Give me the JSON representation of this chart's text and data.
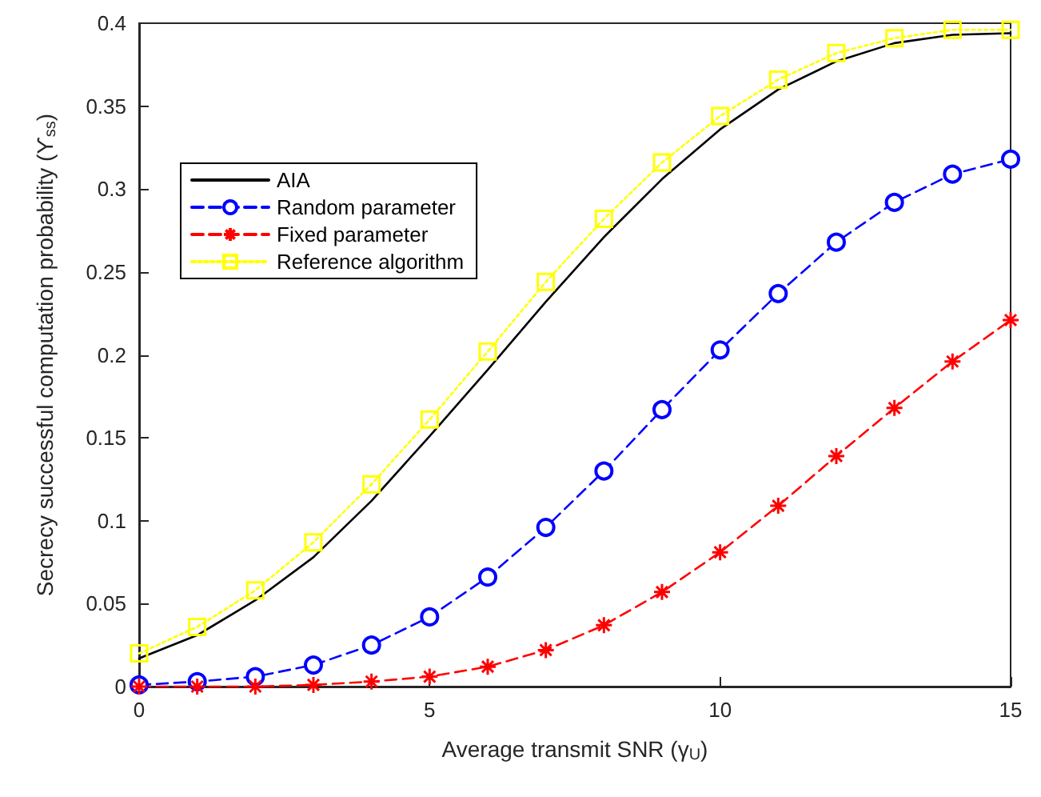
{
  "chart_data": {
    "type": "line",
    "xlabel": "Average transmit SNR (γ$_{U}$)",
    "ylabel": "Secrecy successful computation probability (ϒ$_{ss}$)",
    "x": [
      0,
      1,
      2,
      3,
      4,
      5,
      6,
      7,
      8,
      9,
      10,
      11,
      12,
      13,
      14,
      15
    ],
    "xlim": [
      0,
      15
    ],
    "xticks": [
      0,
      5,
      10,
      15
    ],
    "ylim": [
      0,
      0.4
    ],
    "yticks": [
      0,
      0.05,
      0.1,
      0.15,
      0.2,
      0.25,
      0.3,
      0.35,
      0.4
    ],
    "grid": false,
    "legend": "top left",
    "series": [
      {
        "name": "AIA",
        "color": "#000000",
        "marker": "none",
        "line_style": "solid",
        "values": [
          0.017,
          0.031,
          0.052,
          0.078,
          0.112,
          0.151,
          0.191,
          0.232,
          0.271,
          0.306,
          0.336,
          0.36,
          0.377,
          0.388,
          0.393,
          0.394
        ]
      },
      {
        "name": "Random parameter",
        "color": "#0000ff",
        "marker": "circle",
        "line_style": "dashed",
        "values": [
          0.001,
          0.003,
          0.006,
          0.013,
          0.025,
          0.042,
          0.066,
          0.096,
          0.13,
          0.167,
          0.203,
          0.237,
          0.268,
          0.292,
          0.309,
          0.318
        ]
      },
      {
        "name": "Fixed parameter",
        "color": "#ff0000",
        "marker": "cross",
        "line_style": "dashed",
        "values": [
          0,
          0,
          0,
          0.001,
          0.003,
          0.006,
          0.012,
          0.022,
          0.037,
          0.057,
          0.081,
          0.109,
          0.139,
          0.168,
          0.196,
          0.221
        ]
      },
      {
        "name": "Reference algorithm",
        "color": "#ffff00",
        "marker": "square",
        "line_style": "dotted",
        "values": [
          0.02,
          0.036,
          0.058,
          0.087,
          0.122,
          0.161,
          0.202,
          0.244,
          0.282,
          0.316,
          0.344,
          0.366,
          0.382,
          0.391,
          0.396,
          0.396
        ]
      }
    ]
  }
}
